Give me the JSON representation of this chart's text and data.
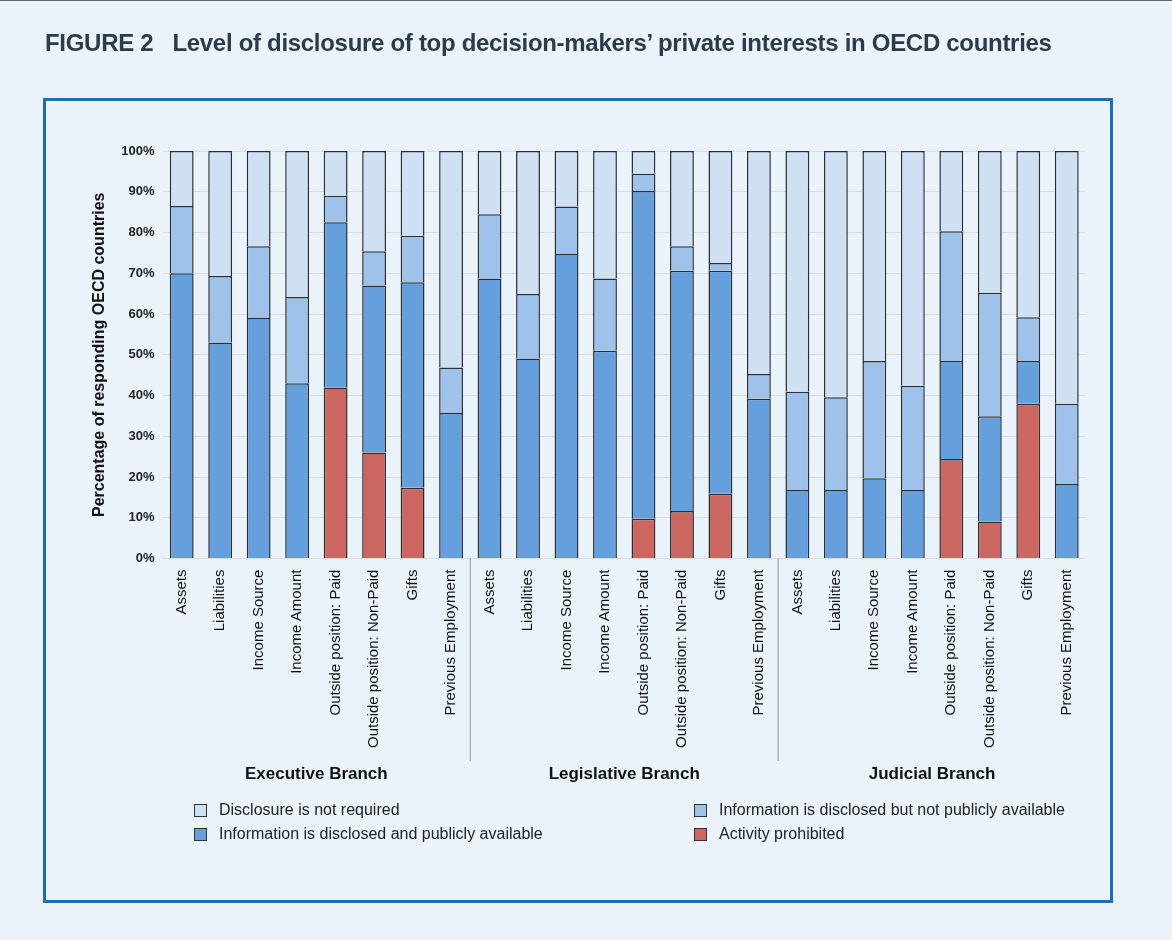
{
  "chart_data": {
    "type": "bar",
    "stacked": true,
    "title": "FIGURE 2   Level of disclosure of top decision-makers’ private interests in OECD countries",
    "ylabel": "Percentage of responding OECD countries",
    "categories": [
      "Assets",
      "Liabilities",
      "Income Source",
      "Income Amount",
      "Outside position: Paid",
      "Outside position: Non-Paid",
      "Gifts",
      "Previous Employment",
      "Assets",
      "Liabilities",
      "Income Source",
      "Income Amount",
      "Outside position: Paid",
      "Outside position: Non-Paid",
      "Gifts",
      "Previous Employment",
      "Assets",
      "Liabilities",
      "Income Source",
      "Income Amount",
      "Outside position: Paid",
      "Outside position: Non-Paid",
      "Gifts",
      "Previous Employment"
    ],
    "series": [
      {
        "name": "Activity prohibited",
        "color": "#cc6660",
        "values": [
          0,
          0,
          0,
          0,
          42,
          26,
          17.4,
          0,
          0,
          0,
          0,
          0,
          9.8,
          11.7,
          15.9,
          0,
          0,
          0,
          0,
          0,
          24.4,
          9.1,
          38,
          0
        ]
      },
      {
        "name": "Information is disclosed and publicly available",
        "color": "#65a0dc",
        "values": [
          70,
          53,
          59,
          43,
          40.5,
          41,
          50.4,
          35.7,
          68.7,
          49.1,
          74.7,
          51,
          80.4,
          58.9,
          54.7,
          39.2,
          16.8,
          16.8,
          19.7,
          16.8,
          24.1,
          25.8,
          10.5,
          18.3
        ]
      },
      {
        "name": "Information is disclosed but not publicly available",
        "color": "#9fc2ea",
        "values": [
          16.5,
          16.3,
          17.6,
          21.2,
          6.5,
          8.4,
          11.4,
          11.2,
          15.8,
          15.8,
          11.7,
          17.7,
          4.2,
          6,
          1.9,
          6.1,
          24.1,
          22.8,
          28.8,
          25.6,
          31.8,
          30.3,
          10.7,
          19.7
        ]
      },
      {
        "name": "Disclosure is not required",
        "color": "#cfe0f3",
        "values": [
          13.5,
          30.7,
          23.4,
          35.8,
          11,
          24.6,
          20.8,
          53.1,
          15.5,
          35.1,
          13.6,
          31.3,
          5.6,
          23.4,
          27.5,
          54.7,
          59.1,
          60.4,
          51.5,
          57.6,
          19.7,
          34.8,
          40.8,
          62
        ]
      }
    ],
    "ylim": [
      0,
      100
    ],
    "yticks": [
      {
        "value": 0,
        "label": "0%"
      },
      {
        "value": 10,
        "label": "10%"
      },
      {
        "value": 20,
        "label": "20%"
      },
      {
        "value": 30,
        "label": "30%"
      },
      {
        "value": 40,
        "label": "40%"
      },
      {
        "value": 50,
        "label": "50%"
      },
      {
        "value": 60,
        "label": "60%"
      },
      {
        "value": 70,
        "label": "70%"
      },
      {
        "value": 80,
        "label": "80%"
      },
      {
        "value": 90,
        "label": "90%"
      },
      {
        "value": 100,
        "label": "100%"
      }
    ],
    "grid": "y",
    "legend": "bottom",
    "annotations": [
      "Executive Branch",
      "Legislative Branch",
      "Judicial Branch"
    ]
  }
}
